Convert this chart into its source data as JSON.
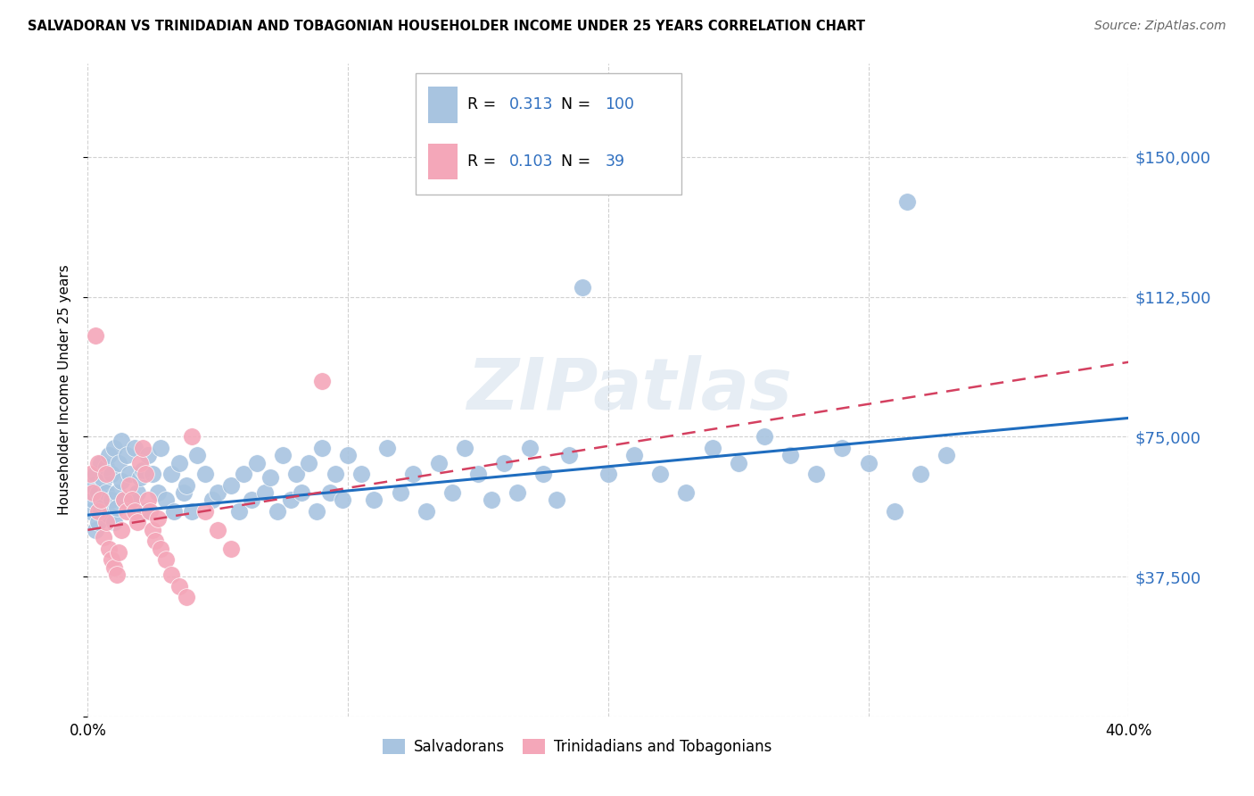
{
  "title": "SALVADORAN VS TRINIDADIAN AND TOBAGONIAN HOUSEHOLDER INCOME UNDER 25 YEARS CORRELATION CHART",
  "source": "Source: ZipAtlas.com",
  "ylabel": "Householder Income Under 25 years",
  "xlim": [
    0.0,
    0.4
  ],
  "ylim": [
    0,
    175000
  ],
  "yticks": [
    0,
    37500,
    75000,
    112500,
    150000
  ],
  "ytick_labels": [
    "",
    "$37,500",
    "$75,000",
    "$112,500",
    "$150,000"
  ],
  "legend_labels": [
    "Salvadorans",
    "Trinidadians and Tobagonians"
  ],
  "blue_color": "#a8c4e0",
  "pink_color": "#f4a7b9",
  "line_blue": "#1f6dbf",
  "line_pink": "#d44060",
  "tick_label_color": "#3070c0",
  "r_blue": "0.313",
  "n_blue": "100",
  "r_pink": "0.103",
  "n_pink": "39",
  "watermark": "ZIPatlas",
  "blue_x": [
    0.001,
    0.002,
    0.002,
    0.003,
    0.003,
    0.004,
    0.004,
    0.005,
    0.005,
    0.006,
    0.006,
    0.007,
    0.007,
    0.008,
    0.008,
    0.009,
    0.009,
    0.01,
    0.01,
    0.011,
    0.011,
    0.012,
    0.013,
    0.013,
    0.014,
    0.015,
    0.016,
    0.017,
    0.018,
    0.019,
    0.02,
    0.021,
    0.022,
    0.023,
    0.025,
    0.027,
    0.028,
    0.03,
    0.032,
    0.033,
    0.035,
    0.037,
    0.038,
    0.04,
    0.042,
    0.045,
    0.048,
    0.05,
    0.055,
    0.058,
    0.06,
    0.063,
    0.065,
    0.068,
    0.07,
    0.073,
    0.075,
    0.078,
    0.08,
    0.082,
    0.085,
    0.088,
    0.09,
    0.093,
    0.095,
    0.098,
    0.1,
    0.105,
    0.11,
    0.115,
    0.12,
    0.125,
    0.13,
    0.135,
    0.14,
    0.145,
    0.15,
    0.155,
    0.16,
    0.165,
    0.17,
    0.175,
    0.18,
    0.185,
    0.19,
    0.2,
    0.21,
    0.22,
    0.23,
    0.24,
    0.25,
    0.26,
    0.27,
    0.28,
    0.29,
    0.3,
    0.31,
    0.315,
    0.32,
    0.33
  ],
  "blue_y": [
    55000,
    58000,
    62000,
    50000,
    65000,
    52000,
    60000,
    55000,
    68000,
    57000,
    63000,
    60000,
    67000,
    54000,
    70000,
    58000,
    65000,
    52000,
    72000,
    60000,
    56000,
    68000,
    63000,
    74000,
    58000,
    70000,
    65000,
    58000,
    72000,
    60000,
    64000,
    66000,
    55000,
    70000,
    65000,
    60000,
    72000,
    58000,
    65000,
    55000,
    68000,
    60000,
    62000,
    55000,
    70000,
    65000,
    58000,
    60000,
    62000,
    55000,
    65000,
    58000,
    68000,
    60000,
    64000,
    55000,
    70000,
    58000,
    65000,
    60000,
    68000,
    55000,
    72000,
    60000,
    65000,
    58000,
    70000,
    65000,
    58000,
    72000,
    60000,
    65000,
    55000,
    68000,
    60000,
    72000,
    65000,
    58000,
    68000,
    60000,
    72000,
    65000,
    58000,
    70000,
    115000,
    65000,
    70000,
    65000,
    60000,
    72000,
    68000,
    75000,
    70000,
    65000,
    72000,
    68000,
    55000,
    138000,
    65000,
    70000
  ],
  "pink_x": [
    0.001,
    0.002,
    0.003,
    0.004,
    0.004,
    0.005,
    0.006,
    0.007,
    0.007,
    0.008,
    0.009,
    0.01,
    0.011,
    0.012,
    0.013,
    0.014,
    0.015,
    0.016,
    0.017,
    0.018,
    0.019,
    0.02,
    0.021,
    0.022,
    0.023,
    0.024,
    0.025,
    0.026,
    0.027,
    0.028,
    0.03,
    0.032,
    0.035,
    0.038,
    0.04,
    0.045,
    0.05,
    0.055,
    0.09
  ],
  "pink_y": [
    65000,
    60000,
    102000,
    55000,
    68000,
    58000,
    48000,
    52000,
    65000,
    45000,
    42000,
    40000,
    38000,
    44000,
    50000,
    58000,
    55000,
    62000,
    58000,
    55000,
    52000,
    68000,
    72000,
    65000,
    58000,
    55000,
    50000,
    47000,
    53000,
    45000,
    42000,
    38000,
    35000,
    32000,
    75000,
    55000,
    50000,
    45000,
    90000
  ]
}
